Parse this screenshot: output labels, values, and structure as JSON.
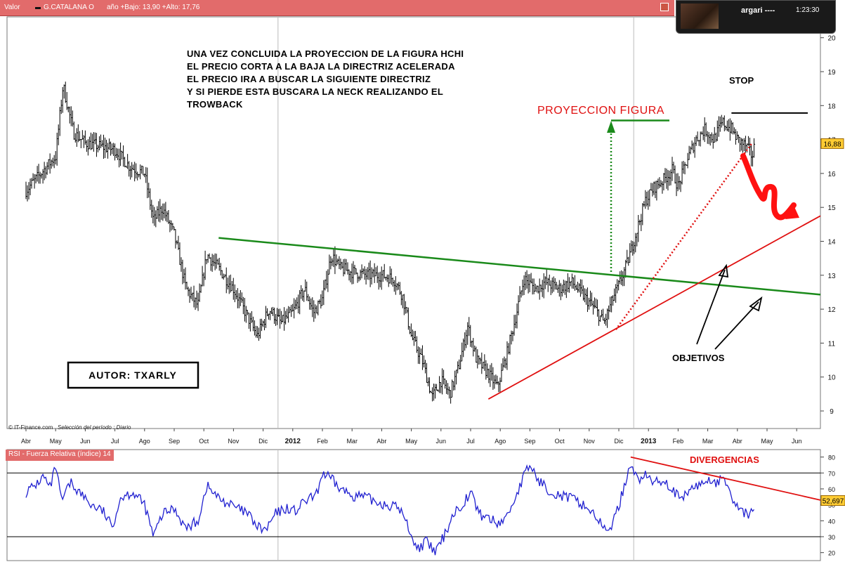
{
  "header": {
    "label": "Valor",
    "ticker": "G.CATALANA O",
    "stats": "año +Bajo: 13,90 +Alto: 17,76"
  },
  "panel": {
    "user": "argari ----",
    "time": "1:23:30"
  },
  "footer": {
    "source": "© IT-Finance.com",
    "period": "Selección del período : Diario"
  },
  "rsi_label": "RSI - Fuerza Relativa (índice) 14",
  "colors": {
    "price": "#000000",
    "rsi": "#2020d0",
    "neckline": "#1a8a1a",
    "trend": "#e01010",
    "header": "#e26b6b",
    "label_bg": "#ffcc33"
  },
  "annotations": {
    "main_text": [
      "UNA VEZ CONCLUIDA LA PROYECCION DE LA FIGURA HCHI",
      "EL PRECIO CORTA A LA BAJA LA DIRECTRIZ ACELERADA",
      "EL PRECIO IRA A BUSCAR LA SIGUIENTE DIRECTRIZ",
      "Y SI PIERDE ESTA BUSCARA LA NECK REALIZANDO EL",
      "TROWBACK"
    ],
    "proyeccion": "PROYECCION FIGURA",
    "stop": "STOP",
    "objetivos": "OBJETIVOS",
    "autor": "AUTOR: TXARLY",
    "divergencias": "DIVERGENCIAS"
  },
  "chart_data": [
    {
      "type": "ohlc",
      "x_labels": [
        "Abr",
        "May",
        "Jun",
        "Jul",
        "Ago",
        "Sep",
        "Oct",
        "Nov",
        "Dic",
        "2012",
        "Feb",
        "Mar",
        "Abr",
        "May",
        "Jun",
        "Jul",
        "Ago",
        "Sep",
        "Oct",
        "Nov",
        "Dic",
        "2013",
        "Feb",
        "Mar",
        "Abr",
        "May",
        "Jun"
      ],
      "ylim": [
        8.5,
        20.6
      ],
      "y_ticks": [
        9,
        10,
        11,
        12,
        13,
        14,
        15,
        16,
        17,
        18,
        19,
        20
      ],
      "last_value_label": "16,88",
      "close_anchors": [
        [
          0,
          15.5
        ],
        [
          1,
          16.5
        ],
        [
          1.25,
          18.6
        ],
        [
          1.6,
          17.2
        ],
        [
          2,
          16.9
        ],
        [
          2.5,
          16.8
        ],
        [
          3,
          16.7
        ],
        [
          3.5,
          16.2
        ],
        [
          4,
          16.0
        ],
        [
          4.3,
          14.6
        ],
        [
          4.6,
          15.0
        ],
        [
          5,
          14.2
        ],
        [
          5.4,
          12.6
        ],
        [
          5.8,
          12.1
        ],
        [
          6.1,
          13.6
        ],
        [
          6.5,
          13.2
        ],
        [
          7,
          12.6
        ],
        [
          7.4,
          11.9
        ],
        [
          7.8,
          11.2
        ],
        [
          8.2,
          12.0
        ],
        [
          8.6,
          11.6
        ],
        [
          9,
          11.9
        ],
        [
          9.4,
          12.6
        ],
        [
          9.7,
          11.9
        ],
        [
          10,
          12.3
        ],
        [
          10.3,
          13.6
        ],
        [
          10.6,
          13.2
        ],
        [
          11,
          13.1
        ],
        [
          11.5,
          13.0
        ],
        [
          12,
          13.0
        ],
        [
          12.4,
          12.9
        ],
        [
          12.7,
          12.4
        ],
        [
          13,
          11.2
        ],
        [
          13.4,
          10.4
        ],
        [
          13.7,
          9.4
        ],
        [
          14,
          9.9
        ],
        [
          14.3,
          9.5
        ],
        [
          14.6,
          10.3
        ],
        [
          14.9,
          11.5
        ],
        [
          15.2,
          10.5
        ],
        [
          15.6,
          10.1
        ],
        [
          15.9,
          9.7
        ],
        [
          16.2,
          10.6
        ],
        [
          16.5,
          11.7
        ],
        [
          16.8,
          12.9
        ],
        [
          17.2,
          12.6
        ],
        [
          17.5,
          12.8
        ],
        [
          18,
          12.6
        ],
        [
          18.4,
          12.8
        ],
        [
          18.8,
          12.4
        ],
        [
          19.2,
          12.0
        ],
        [
          19.5,
          11.6
        ],
        [
          19.8,
          12.3
        ],
        [
          20,
          12.7
        ],
        [
          20.3,
          13.4
        ],
        [
          20.6,
          14.3
        ],
        [
          20.9,
          15.2
        ],
        [
          21.2,
          15.6
        ],
        [
          21.5,
          15.8
        ],
        [
          21.8,
          16.1
        ],
        [
          22,
          15.6
        ],
        [
          22.3,
          16.4
        ],
        [
          22.6,
          17.0
        ],
        [
          22.9,
          17.3
        ],
        [
          23.2,
          17.0
        ],
        [
          23.5,
          17.5
        ],
        [
          23.8,
          17.3
        ],
        [
          24,
          17.0
        ],
        [
          24.3,
          16.8
        ],
        [
          24.5,
          16.5
        ],
        [
          24.6,
          16.9
        ]
      ]
    },
    {
      "type": "line",
      "name": "RSI - Fuerza Relativa (índice) 14",
      "ylim": [
        15,
        85
      ],
      "y_ticks": [
        20,
        30,
        40,
        50,
        60,
        70,
        80
      ],
      "reference_lines": [
        30,
        70
      ],
      "last_value_label": "52,697",
      "anchors": [
        [
          0,
          58
        ],
        [
          0.3,
          62
        ],
        [
          0.6,
          68
        ],
        [
          0.8,
          60
        ],
        [
          1,
          74
        ],
        [
          1.2,
          52
        ],
        [
          1.5,
          64
        ],
        [
          1.8,
          58
        ],
        [
          2.2,
          50
        ],
        [
          2.6,
          46
        ],
        [
          2.9,
          36
        ],
        [
          3.2,
          55
        ],
        [
          3.6,
          58
        ],
        [
          4,
          50
        ],
        [
          4.3,
          30
        ],
        [
          4.6,
          44
        ],
        [
          5,
          48
        ],
        [
          5.4,
          35
        ],
        [
          5.8,
          40
        ],
        [
          6.1,
          62
        ],
        [
          6.5,
          54
        ],
        [
          6.9,
          50
        ],
        [
          7.2,
          47
        ],
        [
          7.5,
          44
        ],
        [
          7.8,
          36
        ],
        [
          8.1,
          34
        ],
        [
          8.4,
          44
        ],
        [
          8.8,
          48
        ],
        [
          9.1,
          46
        ],
        [
          9.4,
          52
        ],
        [
          9.8,
          56
        ],
        [
          10,
          70
        ],
        [
          10.3,
          66
        ],
        [
          10.6,
          60
        ],
        [
          11,
          56
        ],
        [
          11.4,
          55
        ],
        [
          11.8,
          52
        ],
        [
          12.2,
          50
        ],
        [
          12.6,
          48
        ],
        [
          12.9,
          36
        ],
        [
          13.2,
          22
        ],
        [
          13.5,
          27
        ],
        [
          13.8,
          20
        ],
        [
          14.1,
          30
        ],
        [
          14.4,
          44
        ],
        [
          14.7,
          50
        ],
        [
          15,
          58
        ],
        [
          15.3,
          44
        ],
        [
          15.6,
          42
        ],
        [
          15.9,
          38
        ],
        [
          16.2,
          42
        ],
        [
          16.5,
          54
        ],
        [
          16.8,
          68
        ],
        [
          17,
          75
        ],
        [
          17.3,
          65
        ],
        [
          17.6,
          60
        ],
        [
          18,
          56
        ],
        [
          18.4,
          54
        ],
        [
          18.8,
          50
        ],
        [
          19.2,
          44
        ],
        [
          19.5,
          34
        ],
        [
          19.8,
          38
        ],
        [
          20,
          50
        ],
        [
          20.2,
          62
        ],
        [
          20.4,
          78
        ],
        [
          20.6,
          66
        ],
        [
          20.9,
          68
        ],
        [
          21.2,
          64
        ],
        [
          21.5,
          66
        ],
        [
          21.8,
          60
        ],
        [
          22.1,
          52
        ],
        [
          22.4,
          60
        ],
        [
          22.7,
          62
        ],
        [
          23,
          66
        ],
        [
          23.3,
          64
        ],
        [
          23.6,
          66
        ],
        [
          23.9,
          50
        ],
        [
          24.2,
          46
        ],
        [
          24.4,
          42
        ],
        [
          24.6,
          52
        ]
      ]
    }
  ]
}
